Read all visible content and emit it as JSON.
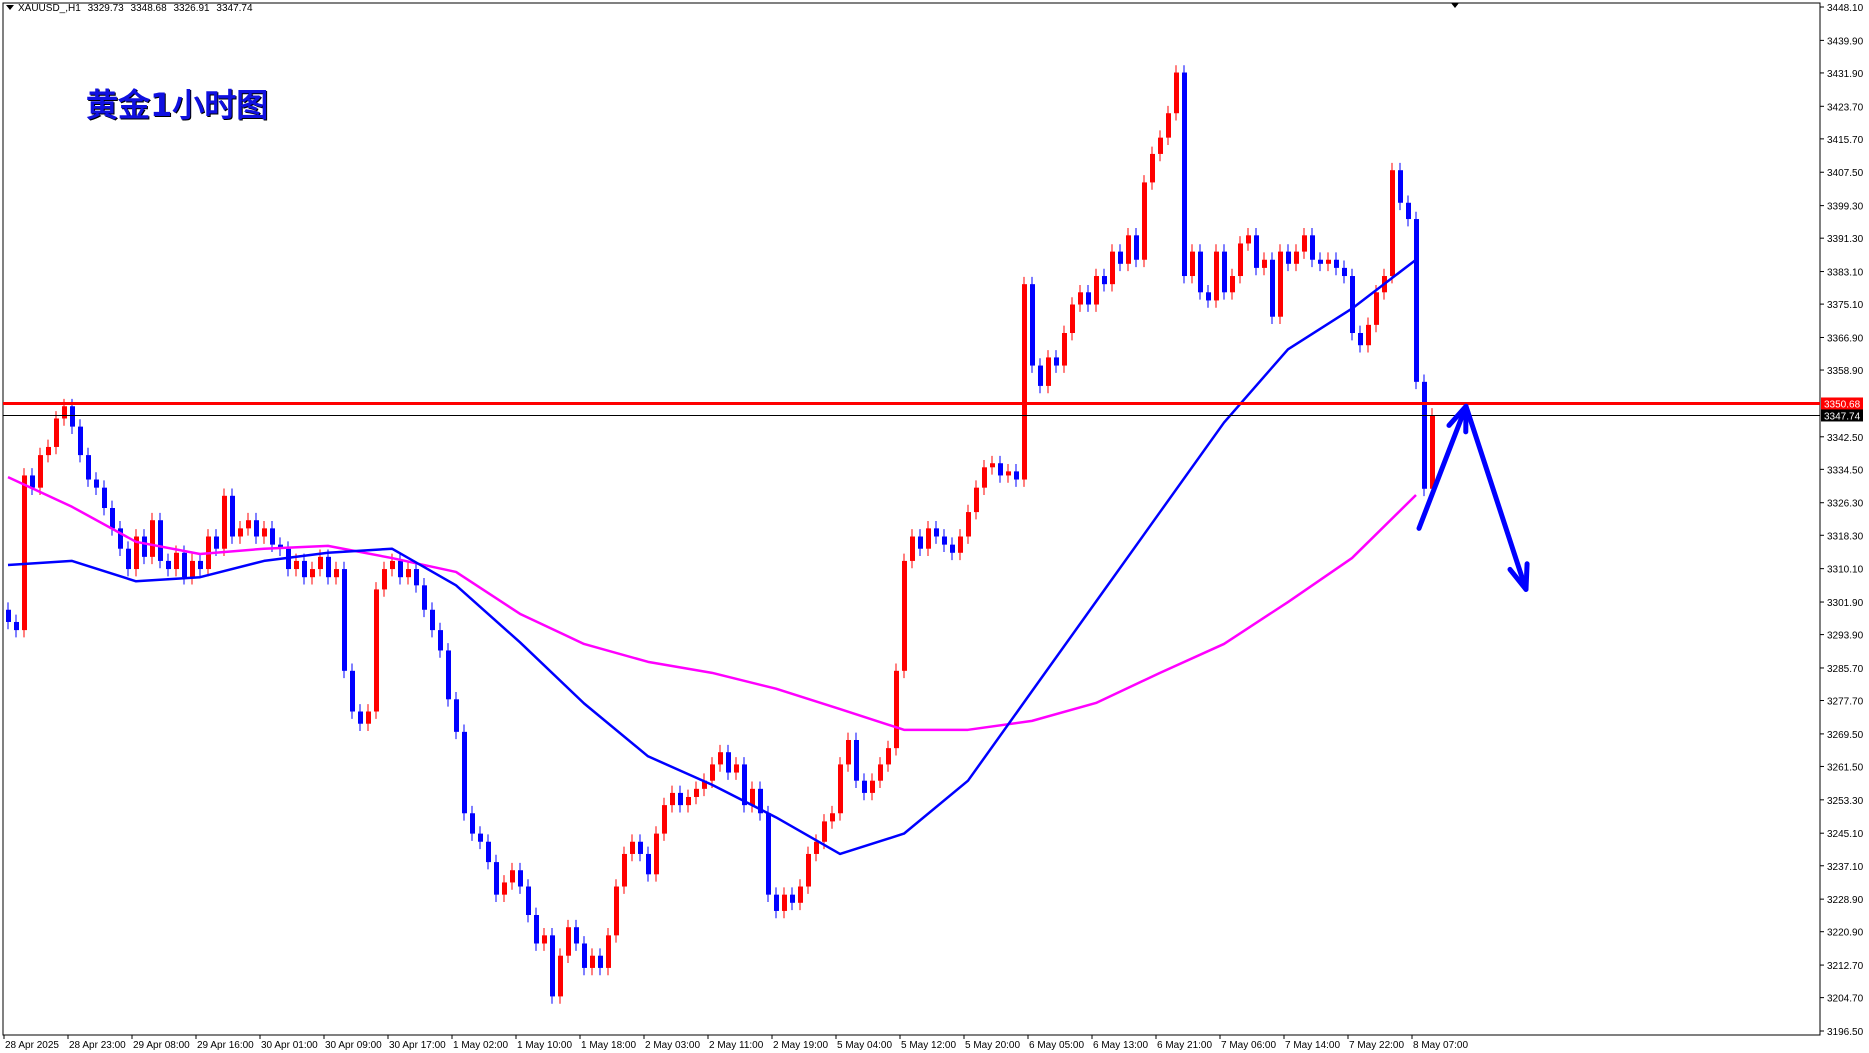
{
  "header": {
    "symbol": "XAUUSD_,H1",
    "open": "3329.73",
    "high": "3348.68",
    "low": "3326.91",
    "close": "3347.74"
  },
  "title": "黄金1小时图",
  "colors": {
    "up": "#ff0000",
    "down": "#0000ff",
    "ma_fast": "#0000ff",
    "ma_slow": "#ff00ff",
    "level_line": "#ff0000",
    "arrow": "#0000ff"
  },
  "chart_data": {
    "type": "candlestick",
    "ylim": [
      3196.5,
      3448.1
    ],
    "grid": false,
    "y_ticks": [
      "3448.10",
      "3439.90",
      "3431.90",
      "3423.70",
      "3415.70",
      "3407.50",
      "3399.30",
      "3391.30",
      "3383.10",
      "3375.10",
      "3366.90",
      "3358.90",
      "3342.50",
      "3334.50",
      "3326.30",
      "3318.30",
      "3310.10",
      "3301.90",
      "3293.90",
      "3285.70",
      "3277.70",
      "3269.50",
      "3261.50",
      "3253.30",
      "3245.10",
      "3237.10",
      "3228.90",
      "3220.90",
      "3212.70",
      "3204.70",
      "3196.50"
    ],
    "x_ticks": [
      "28 Apr 2025",
      "28 Apr 23:00",
      "29 Apr 08:00",
      "29 Apr 16:00",
      "30 Apr 01:00",
      "30 Apr 09:00",
      "30 Apr 17:00",
      "1 May 02:00",
      "1 May 10:00",
      "1 May 18:00",
      "2 May 03:00",
      "2 May 11:00",
      "2 May 19:00",
      "5 May 04:00",
      "5 May 12:00",
      "5 May 20:00",
      "6 May 05:00",
      "6 May 13:00",
      "6 May 21:00",
      "7 May 06:00",
      "7 May 14:00",
      "7 May 22:00",
      "8 May 07:00"
    ],
    "first_open": 3300,
    "close": [
      3297,
      3295,
      3333,
      3330,
      3338,
      3340,
      3347,
      3350,
      3345,
      3338,
      3332,
      3330,
      3325,
      3320,
      3315,
      3310,
      3318,
      3313,
      3322,
      3312,
      3310,
      3314,
      3308,
      3312,
      3310,
      3318,
      3315,
      3328,
      3318,
      3320,
      3322,
      3318,
      3320,
      3316,
      3315,
      3310,
      3312,
      3308,
      3310,
      3313,
      3308,
      3310,
      3285,
      3275,
      3272,
      3275,
      3305,
      3310,
      3312,
      3308,
      3310,
      3306,
      3300,
      3295,
      3290,
      3278,
      3270,
      3250,
      3245,
      3243,
      3238,
      3230,
      3233,
      3236,
      3232,
      3225,
      3218,
      3220,
      3205,
      3215,
      3222,
      3218,
      3212,
      3215,
      3212,
      3220,
      3232,
      3240,
      3243,
      3240,
      3235,
      3245,
      3252,
      3255,
      3252,
      3254,
      3256,
      3258,
      3262,
      3265,
      3260,
      3262,
      3252,
      3256,
      3250,
      3230,
      3226,
      3230,
      3228,
      3232,
      3240,
      3243,
      3248,
      3250,
      3262,
      3268,
      3258,
      3255,
      3258,
      3262,
      3266,
      3285,
      3312,
      3318,
      3315,
      3320,
      3318,
      3316,
      3314,
      3318,
      3324,
      3330,
      3335,
      3336,
      3333,
      3334,
      3332,
      3380,
      3360,
      3355,
      3362,
      3360,
      3368,
      3375,
      3378,
      3375,
      3382,
      3380,
      3388,
      3385,
      3392,
      3386,
      3405,
      3412,
      3416,
      3422,
      3432,
      3382,
      3388,
      3378,
      3376,
      3388,
      3378,
      3382,
      3390,
      3392,
      3384,
      3386,
      3372,
      3388,
      3385,
      3388,
      3392,
      3386,
      3385,
      3386,
      3384,
      3382,
      3368,
      3365,
      3370,
      3378,
      3382,
      3408,
      3400,
      3396,
      3356,
      3329.73,
      3347.74
    ],
    "ma_fast_at_x_ticks": [
      3311,
      3312,
      3307,
      3308,
      3312,
      3314,
      3315,
      3306,
      3292,
      3277,
      3264,
      3257,
      3249,
      3240,
      3245,
      3258,
      3280,
      3302,
      3324,
      3346,
      3364,
      3374,
      3386
    ],
    "ma_slow_at_x_ticks": [
      3332.6,
      3325.3,
      3316.7,
      3313.7,
      3315,
      3315.7,
      3312.7,
      3309.3,
      3299,
      3291.6,
      3287.2,
      3284.5,
      3280.6,
      3275.6,
      3270.5,
      3270.5,
      3272.7,
      3277.1,
      3284.5,
      3291.6,
      3301.9,
      3312.7,
      3328.2
    ],
    "levels": [
      {
        "price": 3350.68,
        "label": "3350.68",
        "color": "#ff0000"
      },
      {
        "price": 3347.74,
        "label": "3347.74",
        "color": "#000000"
      }
    ],
    "arrow_path_prices": [
      3320,
      3350,
      3305
    ]
  }
}
